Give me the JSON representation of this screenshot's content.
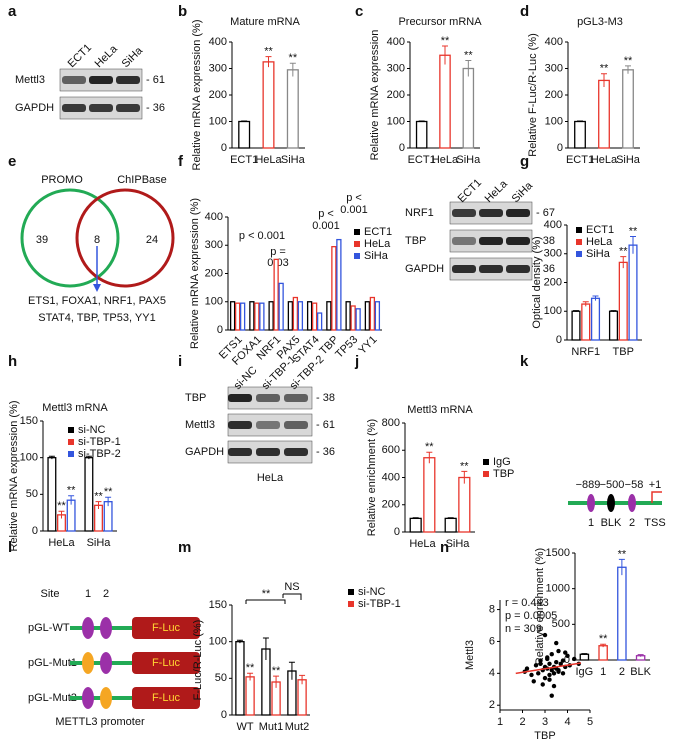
{
  "panel_labels": [
    "a",
    "b",
    "c",
    "d",
    "e",
    "f",
    "g",
    "h",
    "i",
    "j",
    "k",
    "l",
    "m",
    "n"
  ],
  "blots": [
    {
      "columns": [
        "ECT1",
        "HeLa",
        "SiHa"
      ],
      "rows": [
        {
          "label": "Mettl3",
          "size": "- 61"
        },
        {
          "label": "GAPDH",
          "size": "- 36"
        }
      ]
    },
    {
      "columns": [
        "ECT1",
        "HeLa",
        "SiHa"
      ],
      "rows": [
        {
          "label": "NRF1",
          "size": "- 67"
        },
        {
          "label": "TBP",
          "size": "- 38"
        },
        {
          "label": "GAPDH",
          "size": "- 36"
        }
      ]
    },
    {
      "columns": [
        "si-NC",
        "si-TBP-1",
        "si-TBP-2"
      ],
      "rows": [
        {
          "label": "TBP",
          "size": "- 38"
        },
        {
          "label": "Mettl3",
          "size": "- 61"
        },
        {
          "label": "GAPDH",
          "size": "- 36"
        }
      ],
      "footer": "HeLa"
    }
  ],
  "venn": {
    "sets": [
      "PROMO",
      "ChIPBase"
    ],
    "counts": [
      39,
      8,
      24
    ],
    "genes": [
      "ETS1, FOXA1, NRF1, PAX5",
      "STAT4, TBP, TP53, YY1"
    ]
  },
  "promoter_map": {
    "positions": [
      "−889",
      "−500",
      "−58",
      "+1"
    ],
    "sites": [
      "1",
      "BLK",
      "2",
      "TSS"
    ]
  },
  "constructs": {
    "site_label": "Site",
    "sites": [
      "1",
      "2"
    ],
    "names": [
      "pGL-WT",
      "pGL-Mut1",
      "pGL-Mut2"
    ],
    "reporter": "F-Luc",
    "caption": "METTL3 promoter"
  },
  "chart_data": [
    {
      "type": "bar",
      "title": "Mature mRNA",
      "ylabel": "Relative mRNA expression (%)",
      "categories": [
        "ECT1",
        "HeLa",
        "SiHa"
      ],
      "values": [
        100,
        325,
        295
      ],
      "errors": [
        2,
        20,
        25
      ],
      "colors": [
        "#000000",
        "#e8352b",
        "#888888"
      ],
      "significance": [
        null,
        "**",
        "**"
      ],
      "ylim": [
        0,
        400
      ],
      "yticks": [
        0,
        100,
        200,
        300,
        400
      ]
    },
    {
      "type": "bar",
      "title": "Precursor mRNA",
      "ylabel": "Relative mRNA expression",
      "categories": [
        "ECT1",
        "HeLa",
        "SiHa"
      ],
      "values": [
        100,
        350,
        300
      ],
      "errors": [
        2,
        35,
        30
      ],
      "colors": [
        "#000000",
        "#e8352b",
        "#888888"
      ],
      "significance": [
        null,
        "**",
        "**"
      ],
      "ylim": [
        0,
        400
      ],
      "yticks": [
        0,
        100,
        200,
        300,
        400
      ]
    },
    {
      "type": "bar",
      "title": "pGL3-M3",
      "ylabel": "Relative F-Luc/R-Luc (%)",
      "categories": [
        "ECT1",
        "HeLa",
        "SiHa"
      ],
      "values": [
        100,
        255,
        295
      ],
      "errors": [
        2,
        25,
        15
      ],
      "colors": [
        "#000000",
        "#e8352b",
        "#888888"
      ],
      "significance": [
        null,
        "**",
        "**"
      ],
      "ylim": [
        0,
        400
      ],
      "yticks": [
        0,
        100,
        200,
        300,
        400
      ]
    },
    {
      "type": "bar",
      "ylabel": "Relative mRNA expression (%)",
      "categories": [
        "ETS1",
        "FOXA1",
        "NRF1",
        "PAX5",
        "STAT4",
        "TBP",
        "TP53",
        "YY1"
      ],
      "series": [
        {
          "name": "ECT1",
          "color": "#000000",
          "values": [
            100,
            100,
            100,
            100,
            100,
            100,
            100,
            100
          ]
        },
        {
          "name": "HeLa",
          "color": "#e8352b",
          "values": [
            95,
            95,
            250,
            115,
            95,
            295,
            85,
            115
          ]
        },
        {
          "name": "SiHa",
          "color": "#3355dd",
          "values": [
            95,
            95,
            165,
            100,
            60,
            320,
            75,
            100
          ]
        }
      ],
      "annotations": [
        "p < 0.001",
        "p =",
        "0.03",
        "p <",
        "0.001",
        "p <",
        "0.001"
      ],
      "ylim": [
        0,
        400
      ],
      "yticks": [
        0,
        100,
        200,
        300,
        400
      ]
    },
    {
      "type": "bar",
      "ylabel": "Optical density (%)",
      "categories": [
        "NRF1",
        "TBP"
      ],
      "series": [
        {
          "name": "ECT1",
          "color": "#000000",
          "values": [
            100,
            100
          ],
          "errors": [
            2,
            2
          ]
        },
        {
          "name": "HeLa",
          "color": "#e8352b",
          "values": [
            125,
            270
          ],
          "errors": [
            8,
            20
          ],
          "significance": [
            null,
            "**"
          ]
        },
        {
          "name": "SiHa",
          "color": "#3355dd",
          "values": [
            145,
            330
          ],
          "errors": [
            8,
            30
          ],
          "significance": [
            null,
            "**"
          ]
        }
      ],
      "ylim": [
        0,
        400
      ],
      "yticks": [
        0,
        100,
        200,
        300,
        400
      ]
    },
    {
      "type": "bar",
      "title": "Mettl3 mRNA",
      "ylabel": "Relative mRNA expression (%)",
      "categories": [
        "HeLa",
        "SiHa"
      ],
      "series": [
        {
          "name": "si-NC",
          "color": "#000000",
          "values": [
            100,
            100
          ],
          "errors": [
            2,
            2
          ]
        },
        {
          "name": "si-TBP-1",
          "color": "#e8352b",
          "values": [
            22,
            35
          ],
          "errors": [
            5,
            5
          ],
          "significance": [
            "**",
            "**"
          ]
        },
        {
          "name": "si-TBP-2",
          "color": "#3355dd",
          "values": [
            42,
            40
          ],
          "errors": [
            6,
            6
          ],
          "significance": [
            "**",
            "**"
          ]
        }
      ],
      "ylim": [
        0,
        150
      ],
      "yticks": [
        0,
        50,
        100,
        150
      ]
    },
    {
      "type": "bar",
      "title": "Mettl3 mRNA",
      "ylabel": "Relative enrichment (%)",
      "categories": [
        "HeLa",
        "SiHa"
      ],
      "series": [
        {
          "name": "IgG",
          "color": "#000000",
          "values": [
            100,
            100
          ],
          "errors": [
            5,
            5
          ]
        },
        {
          "name": "TBP",
          "color": "#e8352b",
          "values": [
            545,
            400
          ],
          "errors": [
            40,
            45
          ],
          "significance": [
            "**",
            "**"
          ]
        }
      ],
      "ylim": [
        0,
        800
      ],
      "yticks": [
        0,
        200,
        400,
        600,
        800
      ]
    },
    {
      "type": "bar",
      "ylabel": "Relative enrichment (%)",
      "categories": [
        "IgG",
        "1",
        "2",
        "BLK"
      ],
      "values": [
        80,
        200,
        1300,
        60
      ],
      "errors": [
        10,
        20,
        110,
        15
      ],
      "colors": [
        "#000000",
        "#e8352b",
        "#3355dd",
        "#9b30a8"
      ],
      "significance": [
        null,
        "**",
        "**",
        null
      ],
      "ylim": [
        0,
        1500
      ],
      "yticks": [
        0,
        500,
        1000,
        1500
      ]
    },
    {
      "type": "bar",
      "ylabel": "F-Luc/R-Luc (%)",
      "categories": [
        "WT",
        "Mut1",
        "Mut2"
      ],
      "series": [
        {
          "name": "si-NC",
          "color": "#000000",
          "values": [
            100,
            90,
            60
          ],
          "errors": [
            2,
            15,
            12
          ]
        },
        {
          "name": "si-TBP-1",
          "color": "#e8352b",
          "values": [
            52,
            45,
            48
          ],
          "errors": [
            5,
            8,
            6
          ],
          "significance": [
            "**",
            "**",
            null
          ]
        }
      ],
      "annotations": [
        "**",
        "NS"
      ],
      "ylim": [
        0,
        150
      ],
      "yticks": [
        0,
        50,
        100,
        150
      ]
    },
    {
      "type": "scatter",
      "xlabel": "TBP",
      "ylabel": "Mettl3",
      "annotations": [
        "r = 0.443",
        "p = 0.0005",
        "n = 309"
      ],
      "color": "#000000",
      "x": [
        2.1,
        2.4,
        2.6,
        2.7,
        2.8,
        2.9,
        3.0,
        3.0,
        3.1,
        3.1,
        3.2,
        3.2,
        3.3,
        3.3,
        3.4,
        3.4,
        3.5,
        3.5,
        3.6,
        3.6,
        3.7,
        3.8,
        3.9,
        4.0,
        4.1,
        4.3,
        2.5,
        2.9,
        3.2,
        3.5,
        3.8,
        3.0,
        3.3,
        3.6,
        2.8,
        3.4,
        3.9,
        3.1,
        2.2,
        4.5
      ],
      "y": [
        4.1,
        3.9,
        4.5,
        4.0,
        4.8,
        4.2,
        4.4,
        3.7,
        5.0,
        4.3,
        4.6,
        3.9,
        4.2,
        5.2,
        4.4,
        4.0,
        4.7,
        4.3,
        5.4,
        4.1,
        4.6,
        4.8,
        4.4,
        5.1,
        4.5,
        4.9,
        3.5,
        3.3,
        3.6,
        5.9,
        4.0,
        6.4,
        2.6,
        4.2,
        4.6,
        3.2,
        5.3,
        4.9,
        4.3,
        4.6
      ],
      "fit": {
        "color": "#e8352b",
        "x": [
          1.7,
          4.6
        ],
        "y": [
          4.0,
          4.65
        ]
      },
      "xlim": [
        1,
        5
      ],
      "xticks": [
        1,
        2,
        3,
        4,
        5
      ],
      "ylim": [
        1.7,
        8.6
      ],
      "yticks": [
        2,
        4,
        6,
        8
      ]
    }
  ]
}
